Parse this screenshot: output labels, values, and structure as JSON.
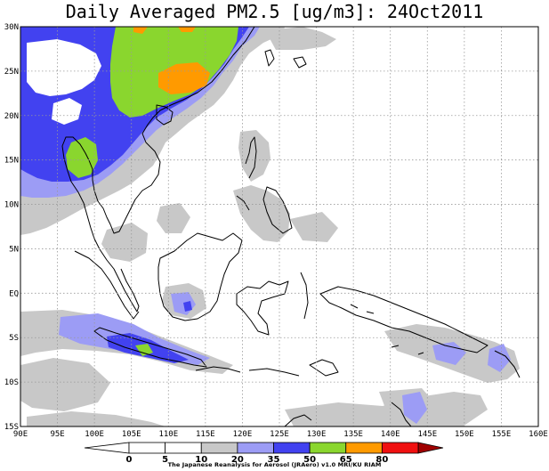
{
  "title": "Daily Averaged PM2.5 [ug/m3]: 24Oct2011",
  "credit": "The Japanese Reanalysis for Aerosol (JRAero) v1.0 MRI/KU RIAM",
  "map": {
    "lon_range": [
      90,
      160
    ],
    "lat_range": [
      -15,
      30
    ],
    "lon_ticks": [
      "90E",
      "95E",
      "100E",
      "105E",
      "110E",
      "115E",
      "120E",
      "125E",
      "130E",
      "135E",
      "140E",
      "145E",
      "150E",
      "155E",
      "160E"
    ],
    "lat_ticks": [
      "30N",
      "25N",
      "20N",
      "15N",
      "10N",
      "5N",
      "EQ",
      "5S",
      "10S",
      "15S"
    ],
    "grid": "dotted"
  },
  "colorbar": {
    "ticks": [
      "0",
      "5",
      "10",
      "20",
      "35",
      "50",
      "65",
      "80"
    ],
    "classes": [
      {
        "range": "0-5",
        "color": "#ffffff"
      },
      {
        "range": "5-10",
        "color": "#ffffff"
      },
      {
        "range": "10-20",
        "color": "#c8c8c8"
      },
      {
        "range": "20-35",
        "color": "#9c9cf5"
      },
      {
        "range": "35-50",
        "color": "#4242f0"
      },
      {
        "range": "50-65",
        "color": "#8ad62e"
      },
      {
        "range": "65-80",
        "color": "#ff9a00"
      },
      {
        "range": "80+",
        "color": "#f01010"
      }
    ],
    "over_color": "#a00000"
  }
}
